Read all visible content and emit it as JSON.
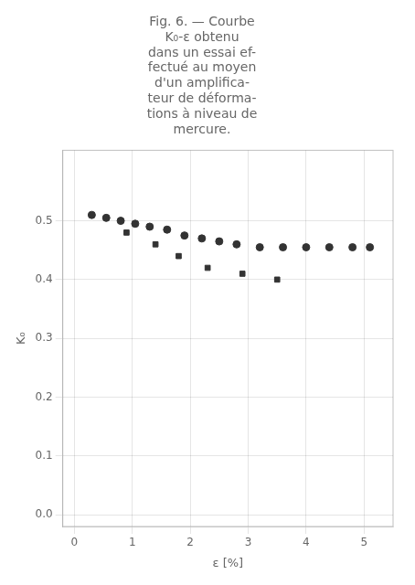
{
  "chart_data": {
    "type": "scatter",
    "title": "Fig. 6. — Courbe\nK₀-ε obtenu\ndans un essai ef-\nfectué au moyen\nd'un amplifica-\nteur de déforma-\ntions à niveau de\nmercure.",
    "x_label": "ε [%]",
    "y_label": "K₀",
    "series": [
      {
        "color": "#333",
        "marker": "circle",
        "x": [
          0.3,
          0.55,
          0.8,
          1.05,
          1.3,
          1.6,
          1.9,
          2.2,
          2.5,
          2.8,
          3.2,
          3.6,
          4.0,
          4.4,
          4.8,
          5.1
        ],
        "values": [
          0.51,
          0.505,
          0.5,
          0.495,
          0.49,
          0.485,
          0.475,
          0.47,
          0.465,
          0.46,
          0.455,
          0.455,
          0.455,
          0.455,
          0.455,
          0.455
        ]
      },
      {
        "color": "#333",
        "marker": "square",
        "x": [
          0.9,
          1.4,
          1.8,
          2.3,
          2.9,
          3.5
        ],
        "values": [
          0.48,
          0.46,
          0.44,
          0.42,
          0.41,
          0.4
        ]
      }
    ],
    "xlim": [
      -0.2,
      5.5
    ],
    "xticks": [
      0,
      1,
      2,
      3,
      4,
      5
    ],
    "ylim": [
      -0.02,
      0.62
    ],
    "yticks": [
      {
        "value": 0,
        "label": "0.0"
      },
      0.1,
      0.2,
      0.3,
      0.4,
      0.5
    ],
    "grid": true
  }
}
